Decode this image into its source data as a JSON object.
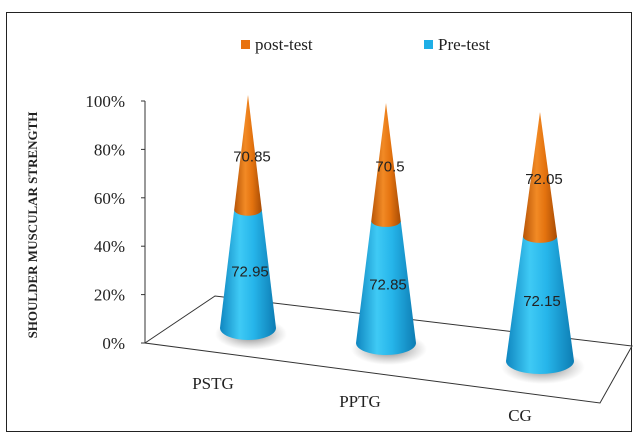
{
  "chart_data": {
    "type": "bar",
    "subtype": "100%-stacked-3d-cone",
    "categories": [
      "PSTG",
      "PPTG",
      "CG"
    ],
    "series": [
      {
        "name": "Pre-test",
        "values": [
          72.95,
          72.85,
          72.15
        ],
        "color": "#1eaee6"
      },
      {
        "name": "post-test",
        "values": [
          70.85,
          70.5,
          72.05
        ],
        "color": "#e8720f"
      }
    ],
    "ylabel": "SHOULDER MUSCULAR STRENGTH",
    "xlabel": "",
    "yticks": [
      "0%",
      "20%",
      "40%",
      "60%",
      "80%",
      "100%"
    ],
    "ylim": [
      0,
      100
    ],
    "legend_position": "top",
    "legend_order": [
      "post-test",
      "Pre-test"
    ]
  }
}
